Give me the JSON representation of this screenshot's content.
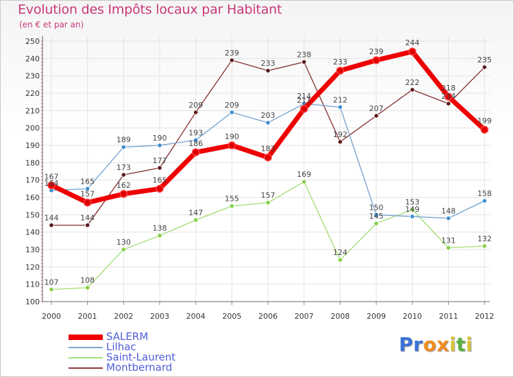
{
  "title": "Evolution des Impôts locaux par Habitant",
  "subtitle": "(en € et par an)",
  "logo": [
    "P",
    "r",
    "o",
    "x",
    "i",
    "t",
    "i"
  ],
  "logo_colors": [
    "#3a73d6",
    "#3a73d6",
    "#f28c1e",
    "#f28c1e",
    "#d8c23a",
    "#5ab040",
    "#d8c23a"
  ],
  "chart_data": {
    "type": "line",
    "title": "Evolution des Impôts locaux par Habitant",
    "subtitle": "(en € et par an)",
    "xlabel": "",
    "ylabel": "",
    "ylim": [
      100,
      250
    ],
    "yticks": [
      100,
      110,
      120,
      130,
      140,
      150,
      160,
      170,
      180,
      190,
      200,
      210,
      220,
      230,
      240,
      250
    ],
    "x": [
      "2000",
      "2001",
      "2002",
      "2003",
      "2004",
      "2005",
      "2006",
      "2007",
      "2008",
      "2009",
      "2010",
      "2011",
      "2012"
    ],
    "grid": true,
    "legend": "bottom-left",
    "series": [
      {
        "name": "SALERM",
        "color": "#ee0000",
        "width": "thick",
        "marker": "#e00000",
        "values": [
          167,
          157,
          162,
          165,
          186,
          190,
          183,
          211,
          233,
          239,
          244,
          218,
          199
        ]
      },
      {
        "name": "Lilhac",
        "color": "#7aa6d0",
        "width": "thin",
        "marker": "#3f8fd0",
        "values": [
          164,
          165,
          189,
          190,
          193,
          209,
          203,
          214,
          212,
          150,
          149,
          148,
          158
        ]
      },
      {
        "name": "Saint-Laurent",
        "color": "#a6df7a",
        "width": "thin",
        "marker": "#86d048",
        "values": [
          107,
          108,
          130,
          138,
          147,
          155,
          157,
          169,
          124,
          145,
          153,
          131,
          132
        ]
      },
      {
        "name": "Montbernard",
        "color": "#8a3a3a",
        "width": "thin",
        "marker": "#5c1a1a",
        "values": [
          144,
          144,
          173,
          177,
          209,
          239,
          233,
          238,
          192,
          207,
          222,
          214,
          235
        ]
      }
    ]
  }
}
